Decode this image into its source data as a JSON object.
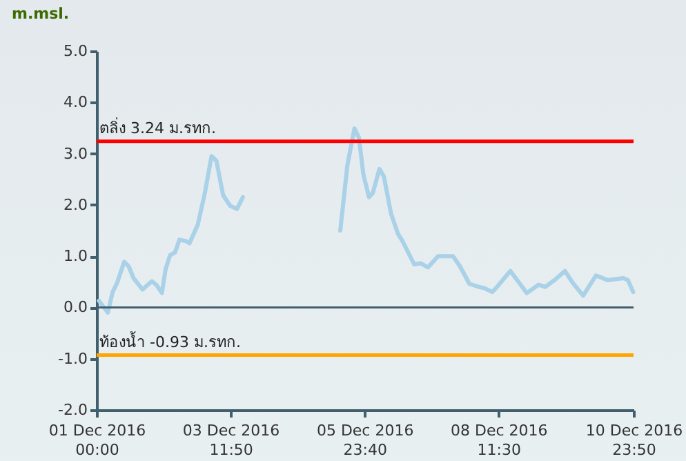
{
  "chart_data": {
    "type": "line",
    "ylabel": "m.msl.",
    "x": [
      "2016-12-01T01:00",
      "2016-12-01T05:00",
      "2016-12-01T07:10",
      "2016-12-01T09:10",
      "2016-12-01T12:20",
      "2016-12-01T14:20",
      "2016-12-01T16:30",
      "2016-12-01T20:30",
      "2016-12-02T00:40",
      "2016-12-02T02:40",
      "2016-12-02T05:10",
      "2016-12-02T06:50",
      "2016-12-02T08:50",
      "2016-12-02T11:00",
      "2016-12-02T13:00",
      "2016-12-02T16:10",
      "2016-12-02T17:30",
      "2016-12-02T21:10",
      "2016-12-03T00:20",
      "2016-12-03T03:20",
      "2016-12-03T05:30",
      "2016-12-03T08:30",
      "2016-12-03T11:40",
      "2016-12-03T14:40",
      "2016-12-03T17:20",
      "2016-12-04T12:00",
      "2016-12-05T12:50",
      "2016-12-05T16:00",
      "2016-12-05T19:10",
      "2016-12-05T21:10",
      "2016-12-05T23:10",
      "2016-12-06T01:40",
      "2016-12-06T03:20",
      "2016-12-06T06:20",
      "2016-12-06T08:20",
      "2016-12-06T11:30",
      "2016-12-06T14:40",
      "2016-12-06T16:40",
      "2016-12-06T21:50",
      "2016-12-07T00:50",
      "2016-12-07T04:00",
      "2016-12-07T08:30",
      "2016-12-07T15:10",
      "2016-12-07T18:20",
      "2016-12-07T22:30",
      "2016-12-08T02:40",
      "2016-12-08T05:00",
      "2016-12-08T08:40",
      "2016-12-08T10:50",
      "2016-12-08T16:50",
      "2016-12-09T00:10",
      "2016-12-09T05:20",
      "2016-12-09T08:20",
      "2016-12-09T12:30",
      "2016-12-09T17:10",
      "2016-12-09T20:40",
      "2016-12-10T01:20",
      "2016-12-10T07:00",
      "2016-12-10T09:00",
      "2016-12-10T12:10",
      "2016-12-10T19:20",
      "2016-12-10T21:20",
      "2016-12-10T23:40"
    ],
    "series": [
      {
        "color": "#a9d1e8",
        "values": [
          0.13,
          -0.1,
          0.3,
          0.48,
          0.89,
          0.8,
          0.57,
          0.35,
          0.51,
          0.44,
          0.28,
          0.75,
          1.02,
          1.07,
          1.32,
          1.29,
          1.25,
          1.61,
          2.23,
          2.95,
          2.86,
          2.19,
          1.98,
          1.92,
          2.15,
          null,
          1.5,
          2.77,
          3.49,
          3.31,
          2.59,
          2.15,
          2.23,
          2.7,
          2.55,
          1.83,
          1.43,
          1.29,
          0.84,
          0.86,
          0.78,
          1.0,
          1.0,
          0.8,
          0.46,
          0.4,
          0.38,
          0.3,
          0.4,
          0.71,
          0.28,
          0.44,
          0.4,
          0.53,
          0.71,
          0.48,
          0.23,
          0.62,
          0.59,
          0.53,
          0.57,
          0.53,
          0.3
        ]
      }
    ],
    "xlim": [
      "2016-12-01T00:00",
      "2016-12-10T23:50"
    ],
    "xticks": [
      {
        "value": "2016-12-01T00:00",
        "label": "01 Dec 2016\n00:00"
      },
      {
        "value": "2016-12-03T11:50",
        "label": "03 Dec 2016\n11:50"
      },
      {
        "value": "2016-12-05T23:40",
        "label": "05 Dec 2016\n23:40"
      },
      {
        "value": "2016-12-08T11:30",
        "label": "08 Dec 2016\n11:30"
      },
      {
        "value": "2016-12-10T23:50",
        "label": "10 Dec 2016\n23:50"
      }
    ],
    "ylim": [
      -2,
      5
    ],
    "yticks": [
      {
        "value": 5,
        "label": "5.0"
      },
      {
        "value": 4,
        "label": "4.0"
      },
      {
        "value": 3,
        "label": "3.0"
      },
      {
        "value": 2,
        "label": "2.0"
      },
      {
        "value": 1,
        "label": "1.0"
      },
      {
        "value": 0,
        "label": "0.0"
      },
      {
        "value": -1,
        "label": "-1.0"
      },
      {
        "value": -2,
        "label": "-2.0"
      }
    ],
    "ref_lines": [
      {
        "axis": "y",
        "value": 3.24,
        "label": "ตลิ่ง 3.24 ม.รทก.",
        "color": "#ff0000"
      },
      {
        "axis": "y",
        "value": -0.93,
        "label": "ท้องน้ำ -0.93 ม.รทก.",
        "color": "#ffa500"
      },
      {
        "axis": "y",
        "value": 0,
        "color": "#41606e"
      }
    ],
    "grid": false,
    "marker": "none",
    "line_style": "solid"
  }
}
